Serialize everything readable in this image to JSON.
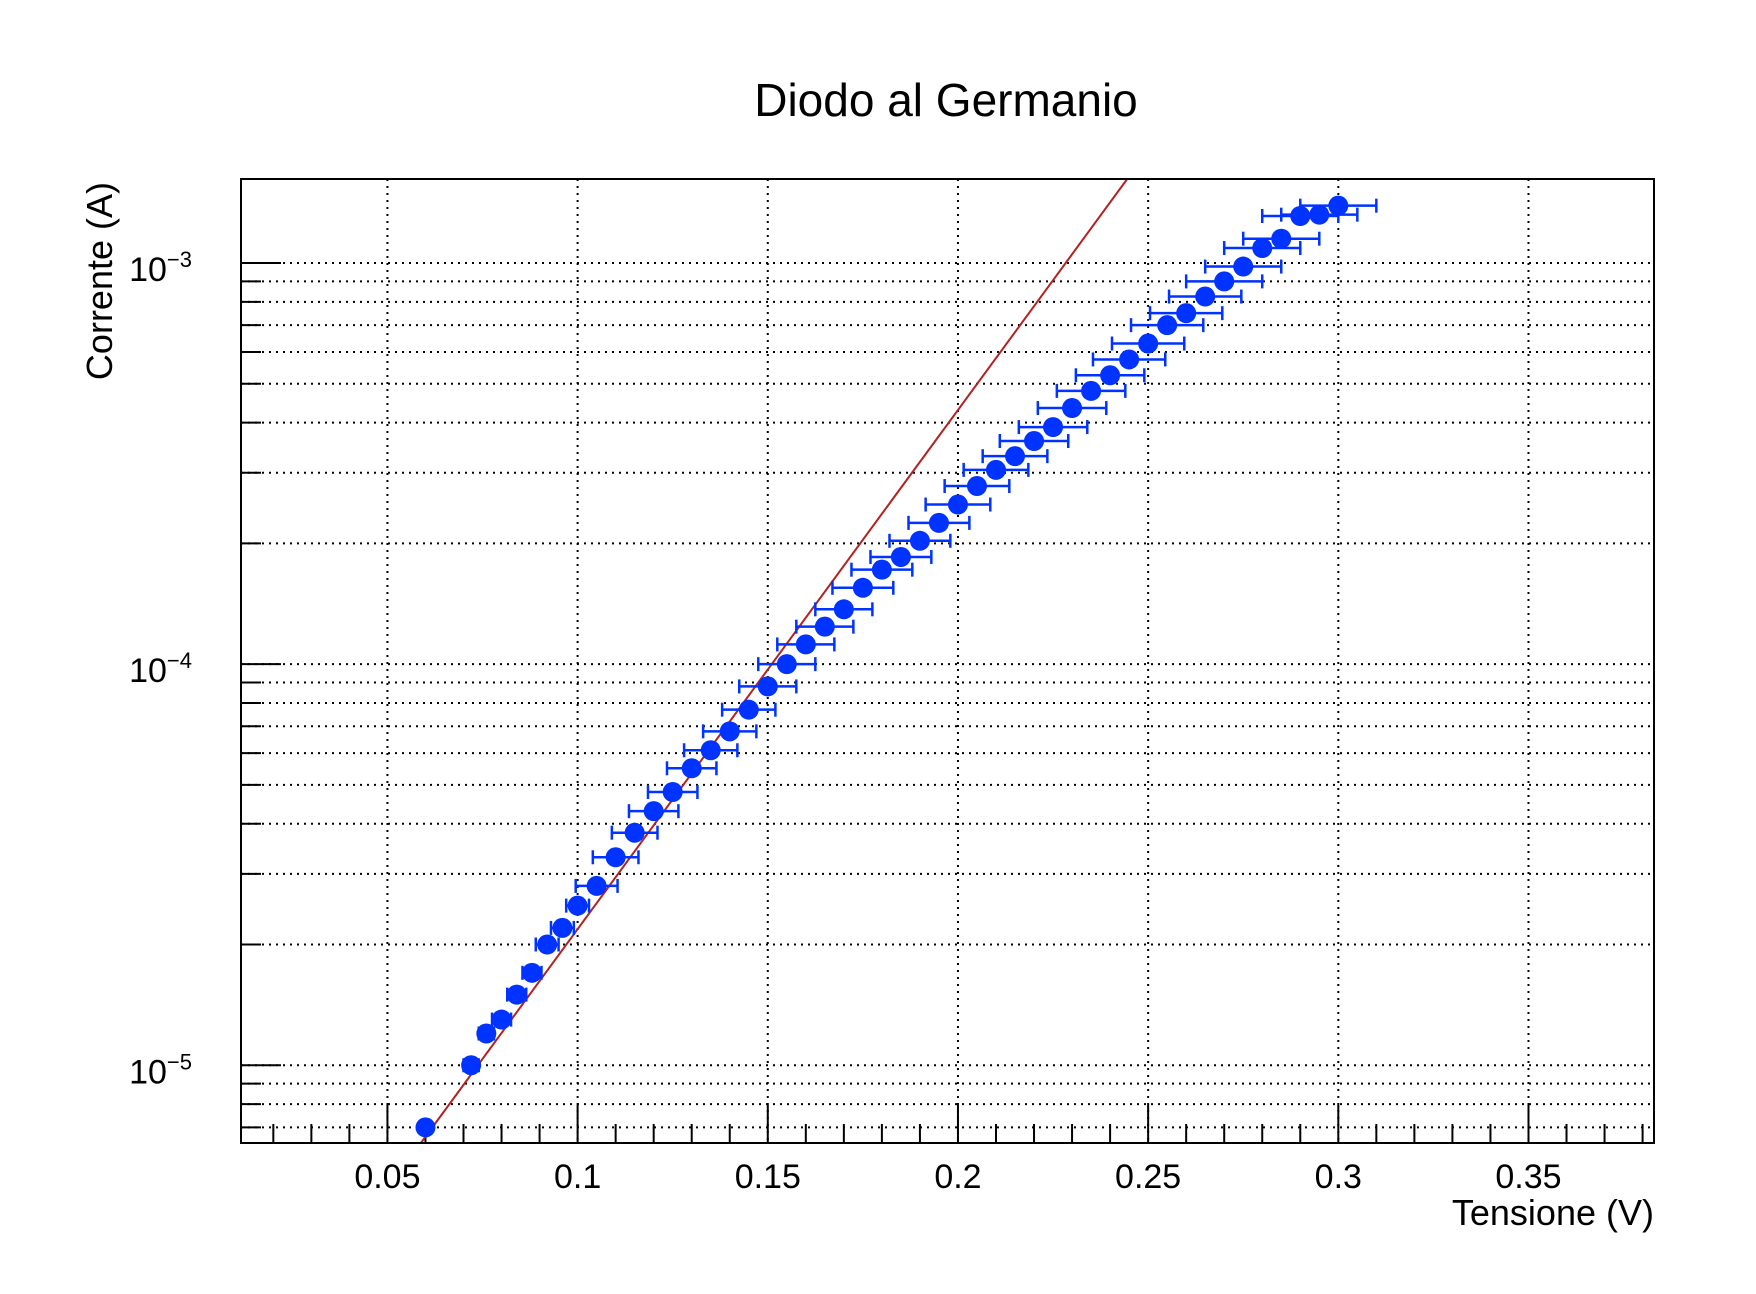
{
  "chart_data": {
    "type": "scatter",
    "title": "Diodo al Germanio",
    "xlabel": "Tensione (V)",
    "ylabel": "Corrente (A)",
    "xlim": [
      0.0115,
      0.383
    ],
    "ylim": [
      6.4e-06,
      0.00162
    ],
    "yscale": "log",
    "grid": true,
    "x_ticks": [
      {
        "value": 0.05,
        "label": "0.05"
      },
      {
        "value": 0.1,
        "label": "0.1"
      },
      {
        "value": 0.15,
        "label": "0.15"
      },
      {
        "value": 0.2,
        "label": "0.2"
      },
      {
        "value": 0.25,
        "label": "0.25"
      },
      {
        "value": 0.3,
        "label": "0.3"
      },
      {
        "value": 0.35,
        "label": "0.35"
      }
    ],
    "y_ticks": [
      {
        "value": 1e-05,
        "base": "10",
        "exponent": "−5"
      },
      {
        "value": 0.0001,
        "base": "10",
        "exponent": "−4"
      },
      {
        "value": 0.001,
        "base": "10",
        "exponent": "−3"
      }
    ],
    "colors": {
      "points": "#0033ff",
      "error_bars": "#0033ff",
      "fit": "#b22222",
      "frame": "#000000",
      "grid": "#000000"
    },
    "series": [
      {
        "x": [
          0.06,
          0.072,
          0.076,
          0.08,
          0.084,
          0.088,
          0.092,
          0.096,
          0.1,
          0.105,
          0.11,
          0.115,
          0.12,
          0.125,
          0.13,
          0.135,
          0.14,
          0.145,
          0.15,
          0.155,
          0.16,
          0.165,
          0.17,
          0.175,
          0.18,
          0.185,
          0.19,
          0.195,
          0.2,
          0.205,
          0.21,
          0.215,
          0.22,
          0.225,
          0.23,
          0.235,
          0.24,
          0.245,
          0.25,
          0.255,
          0.26,
          0.265,
          0.27,
          0.275,
          0.28,
          0.285,
          0.29,
          0.295,
          0.3
        ],
        "y": [
          7e-06,
          1e-05,
          1.2e-05,
          1.3e-05,
          1.5e-05,
          1.7e-05,
          2e-05,
          2.2e-05,
          2.5e-05,
          2.8e-05,
          3.3e-05,
          3.8e-05,
          4.3e-05,
          4.8e-05,
          5.5e-05,
          6.1e-05,
          6.8e-05,
          7.7e-05,
          8.8e-05,
          0.0001,
          0.000112,
          0.000124,
          0.000137,
          0.000155,
          0.000172,
          0.000185,
          0.000203,
          0.000225,
          0.00025,
          0.000278,
          0.000305,
          0.00033,
          0.00036,
          0.00039,
          0.000435,
          0.00048,
          0.000525,
          0.000575,
          0.00063,
          0.0007,
          0.00075,
          0.000825,
          0.0009,
          0.00098,
          0.00109,
          0.00115,
          0.00131,
          0.00132,
          0.00139
        ],
        "x_err": [
          0.0015,
          0.002,
          0.002,
          0.0025,
          0.0025,
          0.0025,
          0.003,
          0.003,
          0.003,
          0.0055,
          0.006,
          0.006,
          0.0065,
          0.0065,
          0.0065,
          0.007,
          0.007,
          0.007,
          0.0075,
          0.0075,
          0.0075,
          0.0075,
          0.0075,
          0.008,
          0.008,
          0.008,
          0.008,
          0.008,
          0.0085,
          0.0085,
          0.0085,
          0.0085,
          0.009,
          0.009,
          0.009,
          0.009,
          0.009,
          0.0095,
          0.0095,
          0.0095,
          0.0095,
          0.0095,
          0.01,
          0.01,
          0.01,
          0.01,
          0.01,
          0.01,
          0.01
        ]
      }
    ],
    "fit": {
      "x": [
        0.0588,
        0.2445
      ],
      "y": [
        6.4e-06,
        0.00162
      ]
    }
  }
}
